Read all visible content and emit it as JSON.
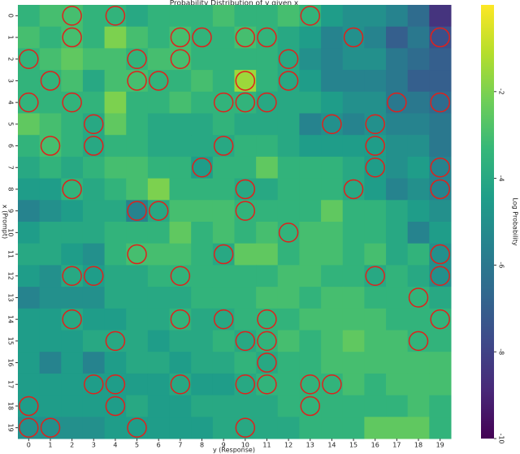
{
  "chart_data": {
    "type": "heatmap",
    "title": "Probability Distribution of y given x",
    "x_label": "y (Response)",
    "y_label": "x (Prompt)",
    "colorbar_label": "Log Probability",
    "colormap": "viridis",
    "columns": [
      0,
      1,
      2,
      3,
      4,
      5,
      6,
      7,
      8,
      9,
      10,
      11,
      12,
      13,
      14,
      15,
      16,
      17,
      18,
      19
    ],
    "rows": [
      0,
      1,
      2,
      3,
      4,
      5,
      6,
      7,
      8,
      9,
      10,
      11,
      12,
      13,
      14,
      15,
      16,
      17,
      18,
      19
    ],
    "zlim": [
      -10,
      0
    ],
    "zticks": [
      -2,
      -4,
      -6,
      -8,
      -10
    ],
    "values": [
      [
        -3.5,
        -3.0,
        -3.0,
        -3.5,
        -3.5,
        -4.0,
        -3.5,
        -3.5,
        -3.5,
        -3.0,
        -3.5,
        -3.5,
        -3.0,
        -3.5,
        -4.5,
        -5.0,
        -5.0,
        -5.5,
        -6.5,
        -8.5
      ],
      [
        -3.0,
        -3.5,
        -3.0,
        -3.5,
        -2.0,
        -3.0,
        -3.5,
        -3.0,
        -3.5,
        -3.5,
        -3.0,
        -3.5,
        -4.0,
        -4.5,
        -5.5,
        -5.0,
        -5.5,
        -7.0,
        -6.0,
        -7.5
      ],
      [
        -3.5,
        -3.0,
        -2.5,
        -3.0,
        -3.0,
        -3.5,
        -3.0,
        -3.0,
        -3.5,
        -3.5,
        -3.5,
        -3.5,
        -4.0,
        -5.0,
        -5.5,
        -5.0,
        -5.0,
        -6.0,
        -6.5,
        -7.0
      ],
      [
        -3.5,
        -3.5,
        -3.0,
        -4.0,
        -3.0,
        -3.0,
        -3.5,
        -3.5,
        -3.0,
        -3.5,
        -1.5,
        -3.5,
        -4.0,
        -4.5,
        -5.5,
        -5.5,
        -5.5,
        -6.0,
        -7.0,
        -7.0
      ],
      [
        -3.5,
        -3.5,
        -3.5,
        -3.5,
        -2.0,
        -3.5,
        -3.5,
        -3.0,
        -3.5,
        -3.5,
        -3.5,
        -4.0,
        -4.0,
        -4.0,
        -4.5,
        -5.0,
        -5.0,
        -6.0,
        -6.0,
        -6.5
      ],
      [
        -2.5,
        -3.0,
        -3.5,
        -4.0,
        -2.5,
        -3.5,
        -4.0,
        -4.0,
        -4.0,
        -3.5,
        -4.0,
        -4.0,
        -4.0,
        -5.5,
        -5.0,
        -5.5,
        -5.0,
        -5.5,
        -5.5,
        -6.0
      ],
      [
        -3.5,
        -3.0,
        -3.5,
        -4.0,
        -3.5,
        -3.5,
        -4.0,
        -4.0,
        -4.0,
        -4.0,
        -3.5,
        -3.5,
        -4.0,
        -4.5,
        -4.5,
        -4.5,
        -4.5,
        -5.0,
        -5.0,
        -6.0
      ],
      [
        -4.0,
        -3.5,
        -4.0,
        -3.5,
        -3.0,
        -3.0,
        -3.5,
        -3.5,
        -4.5,
        -3.5,
        -3.5,
        -2.5,
        -3.5,
        -3.5,
        -3.5,
        -4.0,
        -4.5,
        -5.0,
        -4.5,
        -5.5
      ],
      [
        -4.5,
        -4.5,
        -3.5,
        -4.0,
        -3.5,
        -3.0,
        -2.0,
        -3.5,
        -3.5,
        -3.5,
        -4.0,
        -4.0,
        -3.5,
        -3.5,
        -3.5,
        -4.0,
        -4.5,
        -5.5,
        -5.0,
        -5.5
      ],
      [
        -5.5,
        -5.0,
        -4.5,
        -4.0,
        -4.0,
        -5.5,
        -4.0,
        -3.0,
        -3.0,
        -3.0,
        -3.5,
        -3.5,
        -3.5,
        -3.5,
        -2.5,
        -3.5,
        -3.5,
        -4.0,
        -4.5,
        -5.0
      ],
      [
        -4.5,
        -4.0,
        -4.0,
        -4.0,
        -3.5,
        -3.5,
        -3.5,
        -2.5,
        -3.5,
        -3.0,
        -3.5,
        -3.0,
        -3.5,
        -3.0,
        -3.0,
        -3.5,
        -3.5,
        -4.0,
        -5.5,
        -4.5
      ],
      [
        -4.0,
        -4.0,
        -4.5,
        -5.0,
        -3.5,
        -3.0,
        -3.0,
        -3.0,
        -3.5,
        -4.0,
        -2.5,
        -2.5,
        -3.5,
        -3.0,
        -3.0,
        -3.5,
        -3.0,
        -4.0,
        -3.5,
        -5.0
      ],
      [
        -4.5,
        -5.0,
        -4.0,
        -4.5,
        -4.0,
        -4.0,
        -3.5,
        -3.5,
        -3.5,
        -3.5,
        -3.5,
        -3.5,
        -3.0,
        -3.0,
        -3.5,
        -3.5,
        -4.0,
        -3.5,
        -4.0,
        -5.0
      ],
      [
        -5.5,
        -5.0,
        -5.0,
        -5.0,
        -4.0,
        -4.0,
        -4.0,
        -4.0,
        -3.5,
        -3.5,
        -3.5,
        -3.0,
        -3.0,
        -3.5,
        -3.0,
        -3.0,
        -3.5,
        -3.5,
        -3.5,
        -4.0
      ],
      [
        -4.5,
        -4.5,
        -4.0,
        -4.5,
        -4.5,
        -4.0,
        -4.0,
        -3.5,
        -4.0,
        -4.0,
        -3.5,
        -3.5,
        -3.5,
        -3.0,
        -3.0,
        -3.0,
        -3.0,
        -3.5,
        -3.5,
        -3.5
      ],
      [
        -4.5,
        -4.5,
        -4.5,
        -4.0,
        -4.0,
        -4.0,
        -4.5,
        -4.0,
        -4.0,
        -3.5,
        -4.0,
        -3.5,
        -3.0,
        -3.5,
        -3.0,
        -2.5,
        -3.0,
        -3.0,
        -3.5,
        -3.5
      ],
      [
        -4.5,
        -5.5,
        -4.5,
        -5.5,
        -4.5,
        -4.0,
        -4.0,
        -4.5,
        -4.0,
        -4.0,
        -3.5,
        -4.0,
        -3.5,
        -3.5,
        -3.0,
        -3.0,
        -3.0,
        -3.0,
        -3.0,
        -3.0
      ],
      [
        -4.5,
        -4.5,
        -4.5,
        -4.5,
        -4.5,
        -4.5,
        -4.5,
        -4.0,
        -4.5,
        -4.5,
        -4.0,
        -3.5,
        -3.5,
        -3.5,
        -3.5,
        -3.0,
        -3.5,
        -3.0,
        -3.0,
        -3.0
      ],
      [
        -4.5,
        -4.5,
        -4.5,
        -4.5,
        -4.5,
        -4.0,
        -4.5,
        -4.5,
        -4.0,
        -4.0,
        -4.0,
        -4.0,
        -3.5,
        -3.5,
        -3.5,
        -3.5,
        -3.5,
        -3.5,
        -3.0,
        -3.5
      ],
      [
        -5.0,
        -5.0,
        -5.0,
        -5.0,
        -4.5,
        -4.5,
        -4.5,
        -4.5,
        -4.5,
        -4.0,
        -4.0,
        -4.0,
        -4.0,
        -3.5,
        -3.5,
        -3.5,
        -2.5,
        -2.5,
        -2.5,
        -3.5
      ]
    ],
    "marker_color": "#e0201b",
    "markers": [
      [
        0,
        2
      ],
      [
        0,
        4
      ],
      [
        0,
        13
      ],
      [
        1,
        2
      ],
      [
        1,
        7
      ],
      [
        1,
        8
      ],
      [
        1,
        10
      ],
      [
        1,
        11
      ],
      [
        1,
        15
      ],
      [
        1,
        19
      ],
      [
        2,
        0
      ],
      [
        2,
        5
      ],
      [
        2,
        7
      ],
      [
        2,
        12
      ],
      [
        3,
        1
      ],
      [
        3,
        5
      ],
      [
        3,
        6
      ],
      [
        3,
        10
      ],
      [
        3,
        12
      ],
      [
        4,
        0
      ],
      [
        4,
        2
      ],
      [
        4,
        9
      ],
      [
        4,
        10
      ],
      [
        4,
        11
      ],
      [
        4,
        17
      ],
      [
        4,
        19
      ],
      [
        5,
        3
      ],
      [
        5,
        14
      ],
      [
        5,
        16
      ],
      [
        6,
        1
      ],
      [
        6,
        3
      ],
      [
        6,
        9
      ],
      [
        6,
        16
      ],
      [
        7,
        8
      ],
      [
        7,
        16
      ],
      [
        7,
        19
      ],
      [
        8,
        2
      ],
      [
        8,
        10
      ],
      [
        8,
        15
      ],
      [
        8,
        19
      ],
      [
        9,
        5
      ],
      [
        9,
        6
      ],
      [
        9,
        10
      ],
      [
        10,
        12
      ],
      [
        11,
        5
      ],
      [
        11,
        9
      ],
      [
        11,
        19
      ],
      [
        12,
        2
      ],
      [
        12,
        3
      ],
      [
        12,
        7
      ],
      [
        12,
        16
      ],
      [
        12,
        19
      ],
      [
        13,
        18
      ],
      [
        14,
        2
      ],
      [
        14,
        7
      ],
      [
        14,
        9
      ],
      [
        14,
        11
      ],
      [
        14,
        19
      ],
      [
        15,
        4
      ],
      [
        15,
        10
      ],
      [
        15,
        11
      ],
      [
        15,
        18
      ],
      [
        16,
        11
      ],
      [
        17,
        3
      ],
      [
        17,
        4
      ],
      [
        17,
        7
      ],
      [
        17,
        10
      ],
      [
        17,
        11
      ],
      [
        17,
        13
      ],
      [
        17,
        14
      ],
      [
        18,
        0
      ],
      [
        18,
        4
      ],
      [
        18,
        13
      ],
      [
        19,
        0
      ],
      [
        19,
        1
      ],
      [
        19,
        5
      ],
      [
        19,
        10
      ]
    ]
  }
}
